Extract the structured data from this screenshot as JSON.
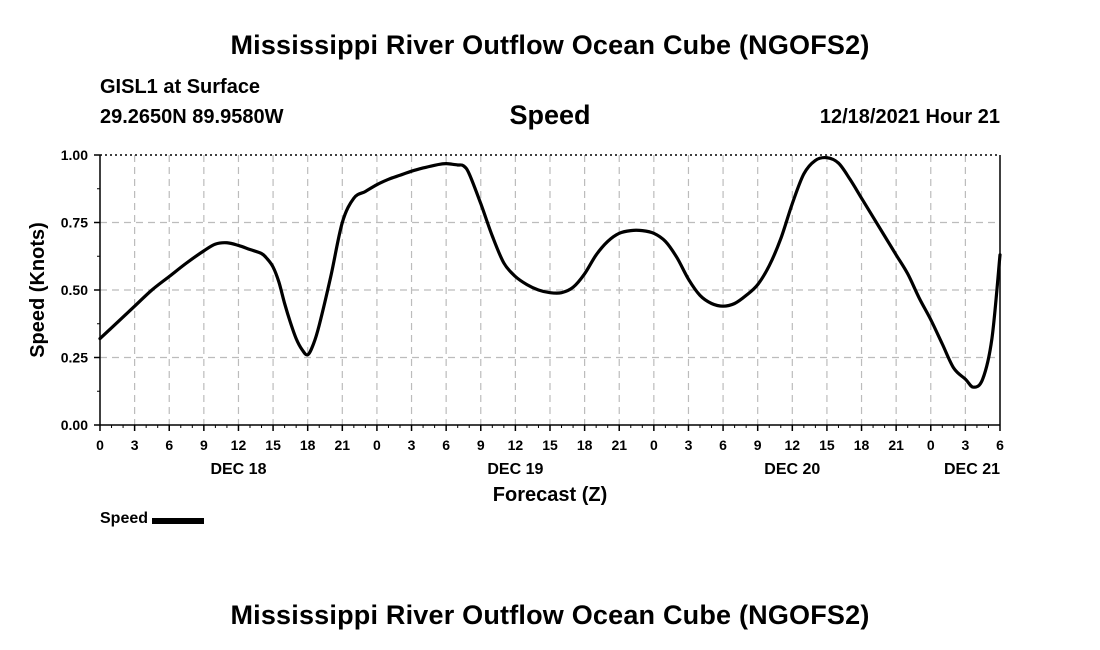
{
  "header": {
    "title": "Mississippi River Outflow Ocean Cube (NGOFS2)",
    "station": "GISL1 at Surface",
    "coordinates": "29.2650N  89.9580W",
    "variable": "Speed",
    "datetime": "12/18/2021 Hour 21"
  },
  "footer": {
    "title": "Mississippi River Outflow Ocean Cube (NGOFS2)"
  },
  "legend": {
    "label": "Speed"
  },
  "chart_data": {
    "type": "line",
    "title": "Speed",
    "xlabel": "Forecast (Z)",
    "ylabel": "Speed (Knots)",
    "xlim": [
      0,
      78
    ],
    "ylim": [
      0,
      1
    ],
    "yticks": [
      0,
      0.25,
      0.5,
      0.75,
      1.0
    ],
    "ytick_labels": [
      "0.00",
      "0.25",
      "0.50",
      "0.75",
      "1.00"
    ],
    "xtick_labels": [
      "0",
      "3",
      "6",
      "9",
      "12",
      "15",
      "18",
      "21",
      "0",
      "3",
      "6",
      "9",
      "12",
      "15",
      "18",
      "21",
      "0",
      "3",
      "6",
      "9",
      "12",
      "15",
      "18",
      "21",
      "0",
      "3",
      "6"
    ],
    "day_labels": [
      {
        "label": "DEC 18",
        "hour": 12
      },
      {
        "label": "DEC 19",
        "hour": 36
      },
      {
        "label": "DEC 20",
        "hour": 60
      },
      {
        "label": "DEC 21",
        "hour": 78
      }
    ],
    "grid": true,
    "legend_position": "bottom-left",
    "series": [
      {
        "name": "Speed",
        "color": "#000000",
        "x": [
          0,
          1.5,
          3,
          4.5,
          6,
          7.5,
          9,
          10,
          11,
          12,
          13,
          14,
          14.5,
          15,
          15.5,
          16,
          16.5,
          17,
          17.5,
          18,
          18.5,
          19,
          20,
          21,
          22,
          23,
          24,
          25,
          26,
          27,
          28,
          29,
          29.5,
          30,
          30.5,
          31,
          31.5,
          32,
          33,
          34,
          35,
          36,
          37,
          38,
          39,
          40,
          41,
          42,
          43,
          44,
          45,
          46,
          47,
          48,
          49,
          50,
          51,
          52,
          53,
          54,
          55,
          56,
          57,
          58,
          59,
          60,
          61,
          62,
          63,
          64,
          65,
          66,
          67,
          68,
          69,
          70,
          71,
          72,
          73,
          74,
          75,
          75.7,
          76.5,
          77.3,
          78
        ],
        "values": [
          0.32,
          0.38,
          0.44,
          0.5,
          0.55,
          0.6,
          0.645,
          0.67,
          0.675,
          0.665,
          0.65,
          0.635,
          0.615,
          0.585,
          0.53,
          0.45,
          0.38,
          0.32,
          0.28,
          0.26,
          0.3,
          0.37,
          0.55,
          0.75,
          0.84,
          0.865,
          0.89,
          0.91,
          0.925,
          0.94,
          0.952,
          0.962,
          0.966,
          0.968,
          0.966,
          0.963,
          0.96,
          0.93,
          0.82,
          0.7,
          0.6,
          0.55,
          0.52,
          0.5,
          0.49,
          0.49,
          0.51,
          0.56,
          0.63,
          0.68,
          0.71,
          0.72,
          0.72,
          0.71,
          0.68,
          0.62,
          0.54,
          0.48,
          0.45,
          0.44,
          0.45,
          0.48,
          0.52,
          0.59,
          0.69,
          0.82,
          0.93,
          0.98,
          0.99,
          0.97,
          0.91,
          0.84,
          0.77,
          0.7,
          0.63,
          0.56,
          0.47,
          0.39,
          0.3,
          0.21,
          0.17,
          0.14,
          0.17,
          0.32,
          0.63
        ]
      }
    ]
  }
}
